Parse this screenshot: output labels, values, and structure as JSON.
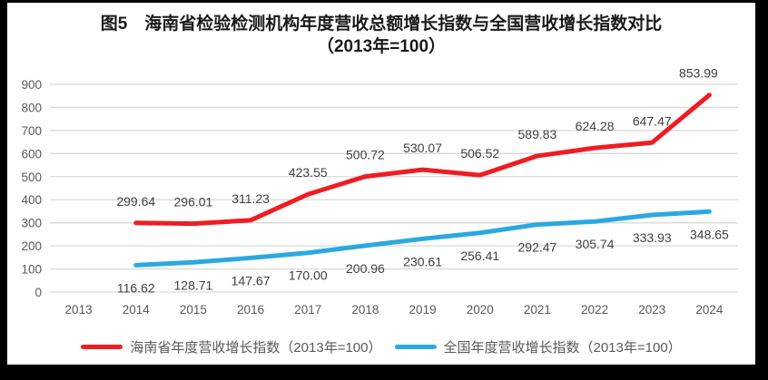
{
  "chart_data": {
    "type": "line",
    "title": "图5　海南省检验检测机构年度营收总额增长指数与全国营收增长指数对比",
    "subtitle": "（2013年=100）",
    "categories": [
      "2013",
      "2014",
      "2015",
      "2016",
      "2017",
      "2018",
      "2019",
      "2020",
      "2021",
      "2022",
      "2023",
      "2024"
    ],
    "series": [
      {
        "name": "海南省年度营收增长指数（2013年=100）",
        "color": "#ee1d23",
        "first_category_index": 1,
        "label_position": "above",
        "values": [
          299.64,
          296.01,
          311.23,
          423.55,
          500.72,
          530.07,
          506.52,
          589.83,
          624.28,
          647.47,
          853.99
        ]
      },
      {
        "name": "全国年度营收增长指数（2013年=100）",
        "color": "#2aa8e0",
        "first_category_index": 1,
        "label_position": "below",
        "values": [
          116.62,
          128.71,
          147.67,
          170.0,
          200.96,
          230.61,
          256.41,
          292.47,
          305.74,
          333.93,
          348.65
        ]
      }
    ],
    "ylim": [
      0,
      900
    ],
    "ytick_step": 100,
    "grid": true,
    "gridline_color": "#d9d9d9",
    "axis_label_color": "#595959",
    "data_label_color": "#404040",
    "legend_position": "bottom"
  }
}
